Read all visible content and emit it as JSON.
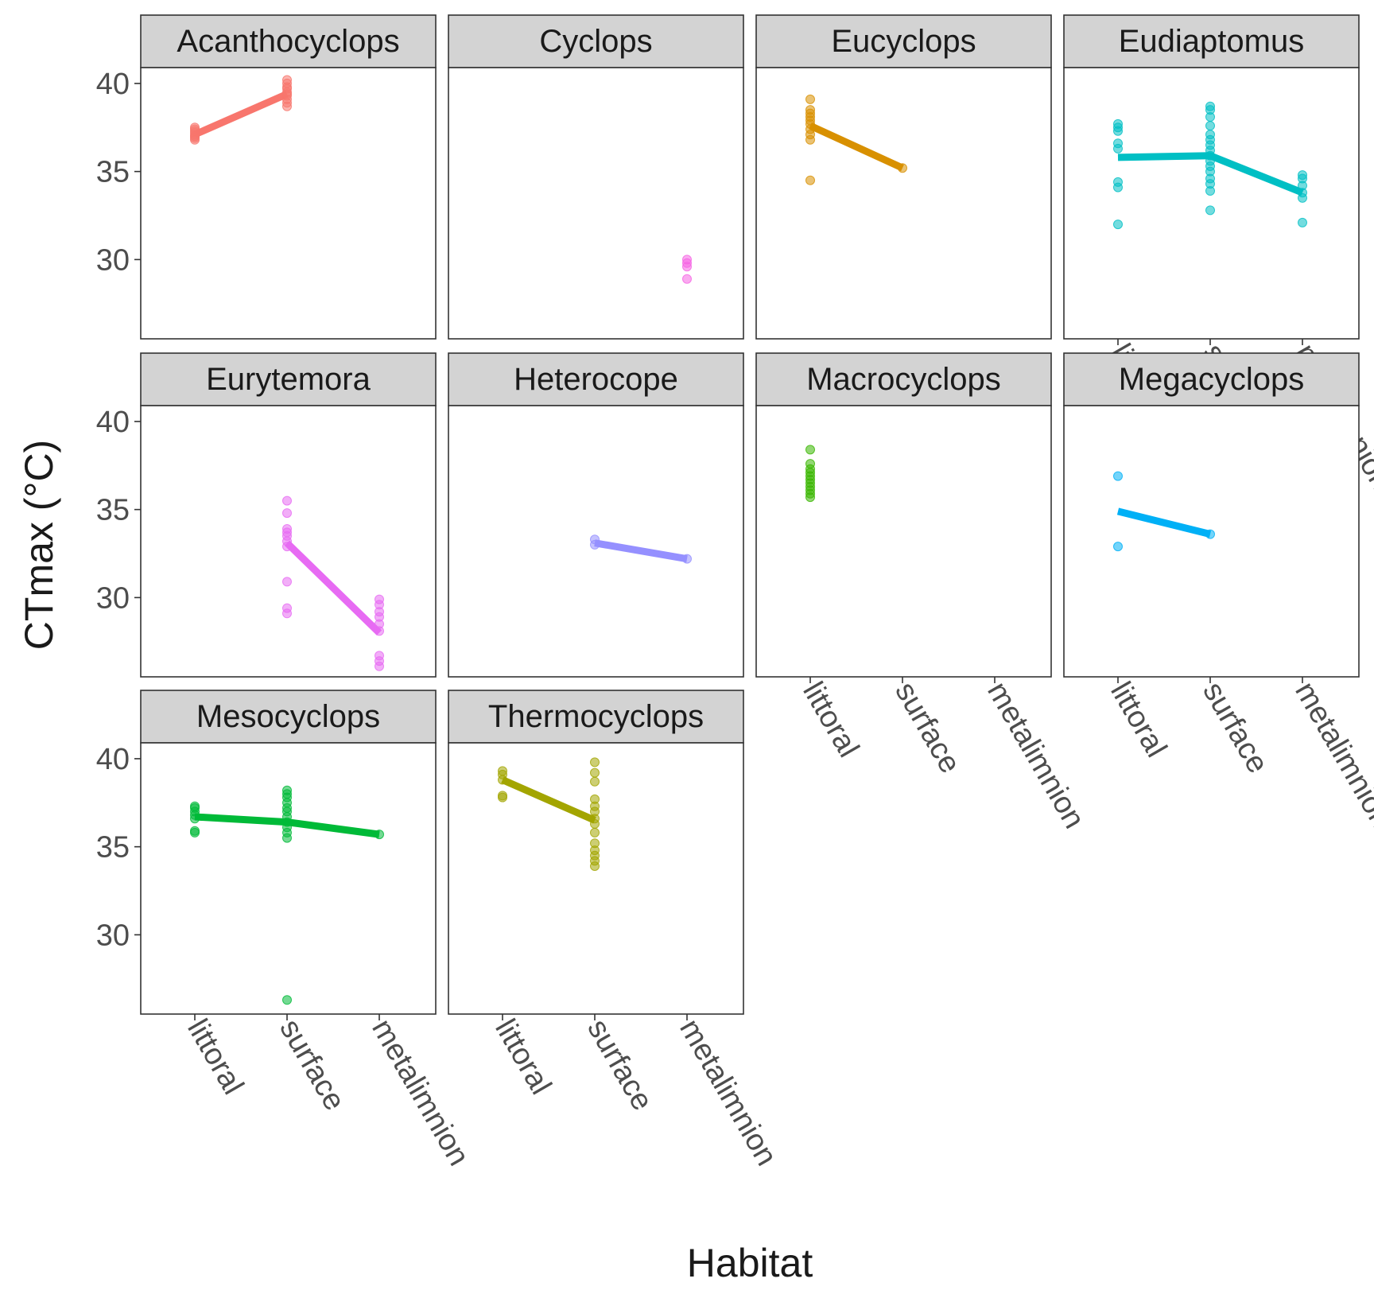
{
  "chart_data": {
    "type": "scatter",
    "xlabel": "Habitat",
    "ylabel": "CTmax (°C)",
    "categories": [
      "littoral",
      "surface",
      "metalimnion"
    ],
    "y_ticks": [
      30,
      35,
      40
    ],
    "ylim": [
      25.5,
      40.9
    ],
    "grid": false,
    "legend": "none",
    "layout": {
      "columns": 4,
      "rows": 3
    },
    "panels": [
      {
        "name": "Acanthocyclops",
        "color": "#F8766D",
        "x_axis_shown": false,
        "points": {
          "littoral": [
            36.8,
            36.9,
            37.0,
            37.0,
            37.1,
            37.2,
            37.3,
            37.4,
            37.5
          ],
          "surface": [
            38.7,
            38.9,
            39.1,
            39.3,
            39.4,
            39.5,
            39.7,
            39.8,
            40.0,
            40.2
          ],
          "metalimnion": []
        },
        "means": {
          "littoral": 37.1,
          "surface": 39.4,
          "metalimnion": null
        }
      },
      {
        "name": "Cyclops",
        "color": "#F564E3",
        "x_axis_shown": false,
        "points": {
          "littoral": [],
          "surface": [],
          "metalimnion": [
            28.9,
            29.6,
            29.8,
            30.0
          ]
        },
        "means": {
          "littoral": null,
          "surface": null,
          "metalimnion": null
        }
      },
      {
        "name": "Eucyclops",
        "color": "#D89000",
        "x_axis_shown": false,
        "points": {
          "littoral": [
            34.5,
            36.8,
            37.1,
            37.4,
            37.7,
            37.9,
            38.1,
            38.3,
            38.5,
            39.1
          ],
          "surface": [
            35.2
          ],
          "metalimnion": []
        },
        "means": {
          "littoral": 37.6,
          "surface": 35.2,
          "metalimnion": null
        }
      },
      {
        "name": "Eudiaptomus",
        "color": "#00BFC4",
        "x_axis_shown": true,
        "points": {
          "littoral": [
            32.0,
            34.1,
            34.4,
            36.3,
            36.6,
            37.3,
            37.5,
            37.7
          ],
          "surface": [
            32.8,
            33.9,
            34.3,
            34.6,
            35.0,
            35.3,
            35.6,
            35.9,
            36.2,
            36.5,
            36.8,
            37.1,
            37.6,
            38.1,
            38.5,
            38.7
          ],
          "metalimnion": [
            32.1,
            33.5,
            33.8,
            34.2,
            34.6,
            34.8
          ]
        },
        "means": {
          "littoral": 35.8,
          "surface": 35.9,
          "metalimnion": 33.8
        }
      },
      {
        "name": "Eurytemora",
        "color": "#E76BF3",
        "x_axis_shown": false,
        "points": {
          "littoral": [],
          "surface": [
            29.1,
            29.4,
            30.9,
            32.9,
            33.2,
            33.5,
            33.7,
            33.9,
            34.8,
            35.5
          ],
          "metalimnion": [
            26.1,
            26.4,
            26.7,
            28.1,
            28.5,
            28.9,
            29.2,
            29.6,
            29.9
          ]
        },
        "means": {
          "littoral": null,
          "surface": 33.1,
          "metalimnion": 28.0
        }
      },
      {
        "name": "Heterocope",
        "color": "#9590FF",
        "x_axis_shown": false,
        "points": {
          "littoral": [],
          "surface": [
            33.0,
            33.3
          ],
          "metalimnion": [
            32.2
          ]
        },
        "means": {
          "littoral": null,
          "surface": 33.1,
          "metalimnion": 32.2
        }
      },
      {
        "name": "Macrocyclops",
        "color": "#39B600",
        "x_axis_shown": true,
        "points": {
          "littoral": [
            35.7,
            35.9,
            36.1,
            36.3,
            36.5,
            36.7,
            36.9,
            37.1,
            37.3,
            37.6,
            38.4
          ],
          "surface": [],
          "metalimnion": []
        },
        "means": {
          "littoral": null,
          "surface": null,
          "metalimnion": null
        }
      },
      {
        "name": "Megacyclops",
        "color": "#00B0F6",
        "x_axis_shown": true,
        "points": {
          "littoral": [
            32.9,
            36.9
          ],
          "surface": [
            33.6
          ],
          "metalimnion": []
        },
        "means": {
          "littoral": 34.9,
          "surface": 33.6,
          "metalimnion": null
        }
      },
      {
        "name": "Mesocyclops",
        "color": "#00BA38",
        "x_axis_shown": true,
        "points": {
          "littoral": [
            35.8,
            35.9,
            36.6,
            36.8,
            37.0,
            37.2,
            37.3
          ],
          "surface": [
            26.3,
            35.5,
            35.8,
            36.1,
            36.4,
            36.7,
            37.0,
            37.2,
            37.5,
            37.8,
            38.0,
            38.2
          ],
          "metalimnion": [
            35.7
          ]
        },
        "means": {
          "littoral": 36.7,
          "surface": 36.4,
          "metalimnion": 35.7
        }
      },
      {
        "name": "Thermocyclops",
        "color": "#A3A500",
        "x_axis_shown": true,
        "points": {
          "littoral": [
            37.8,
            37.9,
            38.8,
            39.1,
            39.3
          ],
          "surface": [
            33.9,
            34.2,
            34.5,
            34.8,
            35.2,
            35.8,
            36.3,
            36.6,
            37.0,
            37.3,
            37.7,
            38.7,
            39.2,
            39.8
          ],
          "metalimnion": []
        },
        "means": {
          "littoral": 38.8,
          "surface": 36.5,
          "metalimnion": null
        }
      }
    ]
  }
}
